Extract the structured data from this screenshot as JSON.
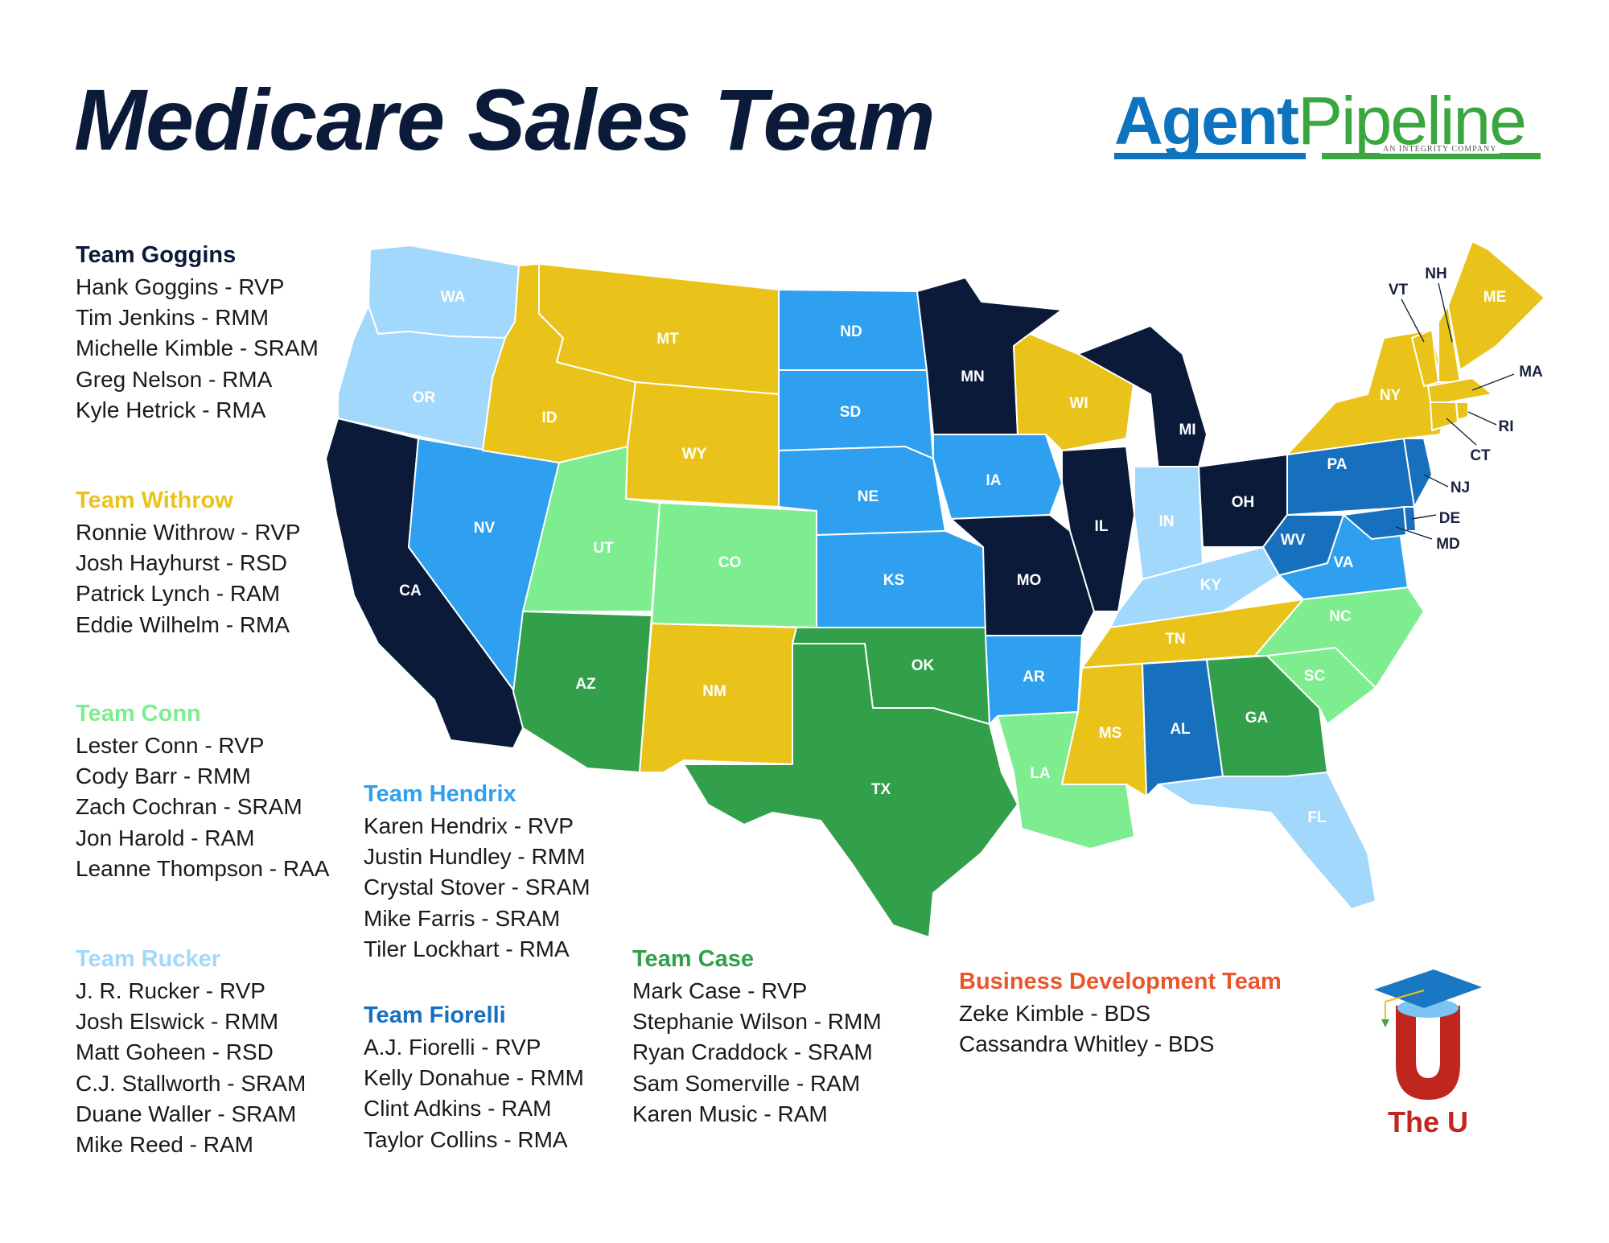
{
  "title": "Medicare Sales Team",
  "logo": {
    "agent": "Agent",
    "pipeline": "Pipeline",
    "tagline": "AN INTEGRITY COMPANY"
  },
  "colors": {
    "navy": "#0c1a3a",
    "gold": "#eac31a",
    "lightgreen": "#7ded8f",
    "skyblue": "#a2d8fb",
    "blue": "#2ea0ef",
    "darkblue": "#1670be",
    "green": "#32a04a",
    "orange": "#e8562a"
  },
  "teams": {
    "goggins": {
      "name": "Team Goggins",
      "members": [
        "Hank Goggins - RVP",
        "Tim Jenkins - RMM",
        "Michelle Kimble - SRAM",
        "Greg Nelson - RMA",
        "Kyle Hetrick - RMA"
      ]
    },
    "withrow": {
      "name": "Team Withrow",
      "members": [
        "Ronnie Withrow - RVP",
        "Josh Hayhurst - RSD",
        "Patrick Lynch - RAM",
        "Eddie Wilhelm - RMA"
      ]
    },
    "conn": {
      "name": "Team Conn",
      "members": [
        "Lester Conn - RVP",
        "Cody Barr - RMM",
        "Zach Cochran - SRAM",
        "Jon Harold - RAM",
        "Leanne Thompson - RAA"
      ]
    },
    "rucker": {
      "name": "Team Rucker",
      "members": [
        "J. R. Rucker - RVP",
        "Josh Elswick - RMM",
        "Matt Goheen - RSD",
        "C.J. Stallworth - SRAM",
        "Duane Waller - SRAM",
        "Mike Reed - RAM"
      ]
    },
    "hendrix": {
      "name": "Team Hendrix",
      "members": [
        "Karen Hendrix - RVP",
        "Justin Hundley - RMM",
        "Crystal Stover - SRAM",
        "Mike Farris - SRAM",
        "Tiler Lockhart - RMA"
      ]
    },
    "fiorelli": {
      "name": "Team Fiorelli",
      "members": [
        "A.J. Fiorelli - RVP",
        "Kelly Donahue - RMM",
        "Clint Adkins - RAM",
        "Taylor Collins - RMA"
      ]
    },
    "case": {
      "name": "Team Case",
      "members": [
        "Mark Case - RVP",
        "Stephanie Wilson - RMM",
        "Ryan Craddock - SRAM",
        "Sam Somerville - RAM",
        "Karen Music - RAM"
      ]
    },
    "bizdev": {
      "name": "Business Development Team",
      "members": [
        "Zeke Kimble - BDS",
        "Cassandra Whitley - BDS"
      ]
    }
  },
  "map_states": {
    "WA": "WA",
    "OR": "OR",
    "CA": "CA",
    "ID": "ID",
    "NV": "NV",
    "MT": "MT",
    "WY": "WY",
    "UT": "UT",
    "AZ": "AZ",
    "CO": "CO",
    "NM": "NM",
    "ND": "ND",
    "SD": "SD",
    "NE": "NE",
    "KS": "KS",
    "OK": "OK",
    "TX": "TX",
    "MN": "MN",
    "IA": "IA",
    "MO": "MO",
    "AR": "AR",
    "LA": "LA",
    "WI": "WI",
    "IL": "IL",
    "MI": "MI",
    "IN": "IN",
    "OH": "OH",
    "KY": "KY",
    "TN": "TN",
    "MS": "MS",
    "AL": "AL",
    "GA": "GA",
    "FL": "FL",
    "SC": "SC",
    "NC": "NC",
    "VA": "VA",
    "WV": "WV",
    "PA": "PA",
    "NY": "NY",
    "VT": "VT",
    "NH": "NH",
    "ME": "ME",
    "MA": "MA",
    "RI": "RI",
    "CT": "CT",
    "NJ": "NJ",
    "DE": "DE",
    "MD": "MD"
  },
  "badge": {
    "letter": "U",
    "name": "The U"
  }
}
